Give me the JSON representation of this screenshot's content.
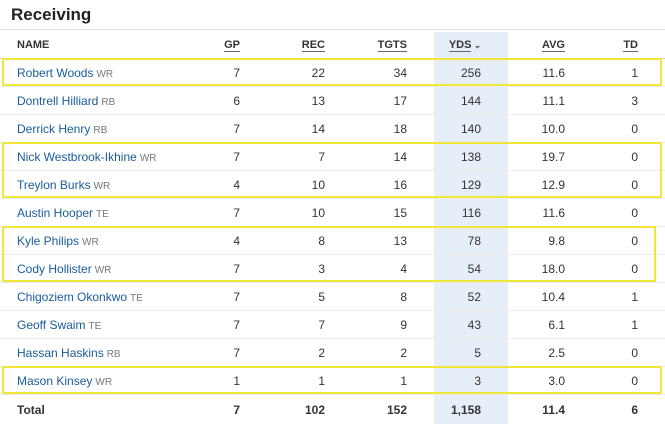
{
  "section": {
    "title": "Receiving"
  },
  "columns": {
    "name": "NAME",
    "gp": "GP",
    "rec": "REC",
    "tgts": "TGTS",
    "yds": "YDS",
    "avg": "AVG",
    "td": "TD"
  },
  "sort": {
    "column": "YDS",
    "direction": "descending"
  },
  "players": [
    {
      "name": "Robert Woods",
      "pos": "WR",
      "gp": "7",
      "rec": "22",
      "tgts": "34",
      "yds": "256",
      "avg": "11.6",
      "td": "1"
    },
    {
      "name": "Dontrell Hilliard",
      "pos": "RB",
      "gp": "6",
      "rec": "13",
      "tgts": "17",
      "yds": "144",
      "avg": "11.1",
      "td": "3"
    },
    {
      "name": "Derrick Henry",
      "pos": "RB",
      "gp": "7",
      "rec": "14",
      "tgts": "18",
      "yds": "140",
      "avg": "10.0",
      "td": "0"
    },
    {
      "name": "Nick Westbrook-Ikhine",
      "pos": "WR",
      "gp": "7",
      "rec": "7",
      "tgts": "14",
      "yds": "138",
      "avg": "19.7",
      "td": "0"
    },
    {
      "name": "Treylon Burks",
      "pos": "WR",
      "gp": "4",
      "rec": "10",
      "tgts": "16",
      "yds": "129",
      "avg": "12.9",
      "td": "0"
    },
    {
      "name": "Austin Hooper",
      "pos": "TE",
      "gp": "7",
      "rec": "10",
      "tgts": "15",
      "yds": "116",
      "avg": "11.6",
      "td": "0"
    },
    {
      "name": "Kyle Philips",
      "pos": "WR",
      "gp": "4",
      "rec": "8",
      "tgts": "13",
      "yds": "78",
      "avg": "9.8",
      "td": "0"
    },
    {
      "name": "Cody Hollister",
      "pos": "WR",
      "gp": "7",
      "rec": "3",
      "tgts": "4",
      "yds": "54",
      "avg": "18.0",
      "td": "0"
    },
    {
      "name": "Chigoziem Okonkwo",
      "pos": "TE",
      "gp": "7",
      "rec": "5",
      "tgts": "8",
      "yds": "52",
      "avg": "10.4",
      "td": "1"
    },
    {
      "name": "Geoff Swaim",
      "pos": "TE",
      "gp": "7",
      "rec": "7",
      "tgts": "9",
      "yds": "43",
      "avg": "6.1",
      "td": "1"
    },
    {
      "name": "Hassan Haskins",
      "pos": "RB",
      "gp": "7",
      "rec": "2",
      "tgts": "2",
      "yds": "5",
      "avg": "2.5",
      "td": "0"
    },
    {
      "name": "Mason Kinsey",
      "pos": "WR",
      "gp": "1",
      "rec": "1",
      "tgts": "1",
      "yds": "3",
      "avg": "3.0",
      "td": "0"
    }
  ],
  "totals": {
    "label": "Total",
    "gp": "7",
    "rec": "102",
    "tgts": "152",
    "yds": "1,158",
    "avg": "11.4",
    "td": "6"
  },
  "highlight_color": "#f1e63a"
}
